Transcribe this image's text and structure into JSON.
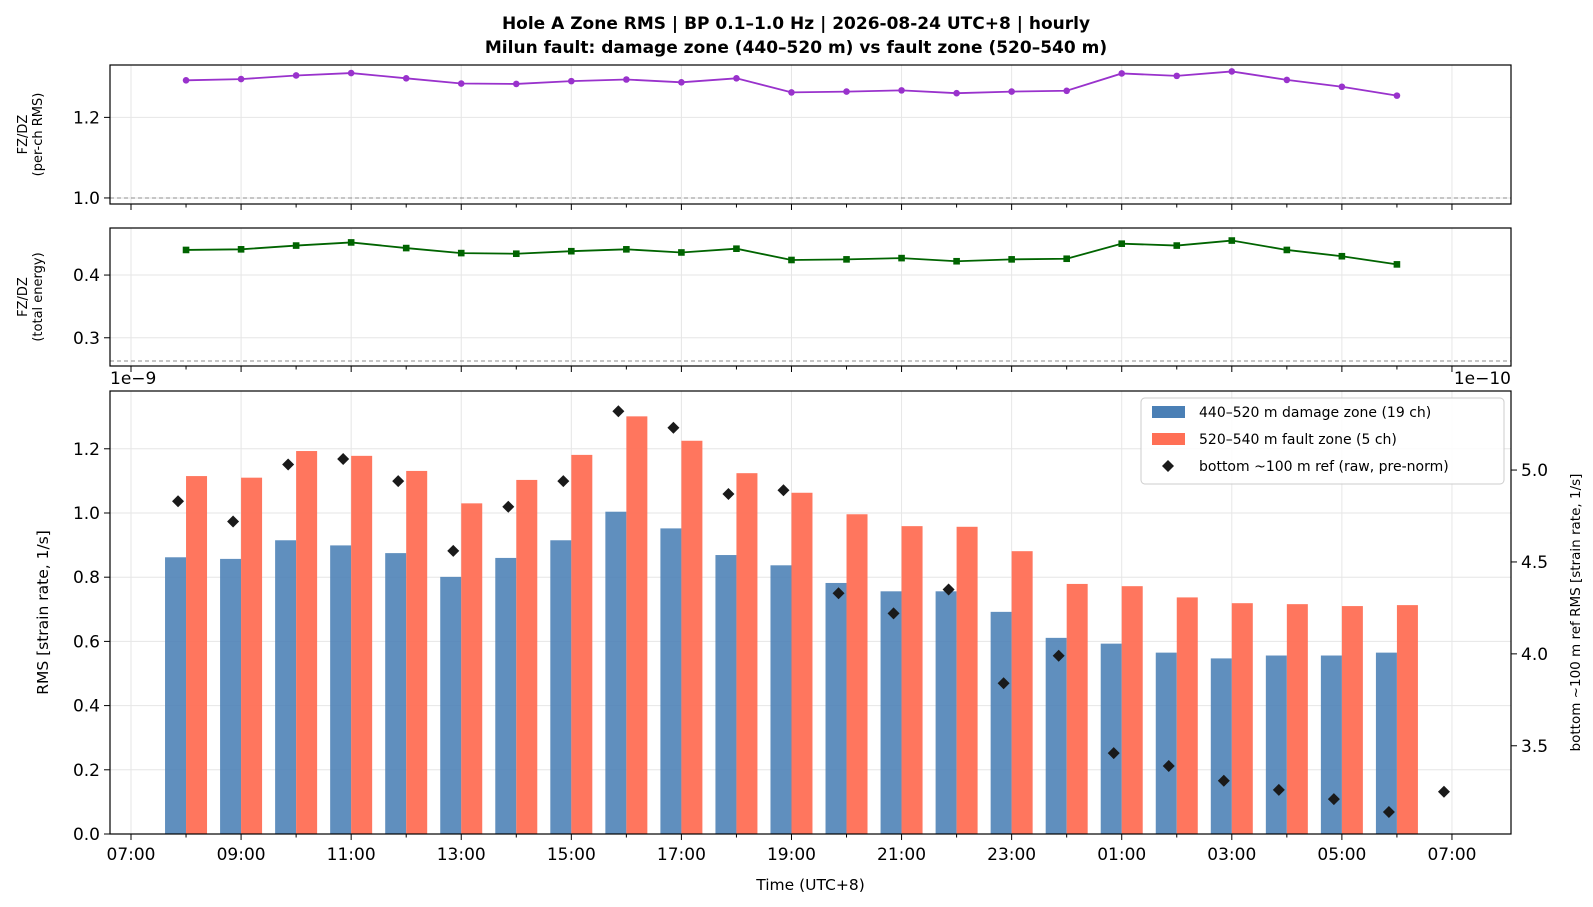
{
  "figure": {
    "title_line1": "Hole A Zone RMS  |  BP 0.1–1.0 Hz  |  2026-08-24 UTC+8  |  hourly",
    "title_line2": "Milun fault: damage zone (440–520 m) vs fault zone (520–540 m)"
  },
  "chart_data": [
    {
      "type": "line",
      "ylabel": [
        "FZ/DZ",
        "(per-ch RMS)"
      ],
      "x_index": [
        1,
        2,
        3,
        4,
        5,
        6,
        7,
        8,
        9,
        10,
        11,
        12,
        13,
        14,
        15,
        16,
        17,
        18,
        19,
        20,
        21,
        22,
        23
      ],
      "values": [
        1.292,
        1.295,
        1.304,
        1.31,
        1.297,
        1.284,
        1.283,
        1.29,
        1.294,
        1.287,
        1.297,
        1.262,
        1.264,
        1.267,
        1.26,
        1.264,
        1.266,
        1.309,
        1.303,
        1.314,
        1.293,
        1.276,
        1.254
      ],
      "ylim": [
        0.985,
        1.33
      ],
      "yticks": [
        1.0,
        1.2
      ],
      "ytick_labels": [
        "1.0",
        "1.2"
      ],
      "reference_line": 1.0,
      "color": "#9932CC",
      "marker": "circle",
      "grid": true
    },
    {
      "type": "line",
      "ylabel": [
        "FZ/DZ",
        "(total energy)"
      ],
      "x_index": [
        1,
        2,
        3,
        4,
        5,
        6,
        7,
        8,
        9,
        10,
        11,
        12,
        13,
        14,
        15,
        16,
        17,
        18,
        19,
        20,
        21,
        22,
        23
      ],
      "values": [
        0.44,
        0.441,
        0.447,
        0.452,
        0.443,
        0.435,
        0.434,
        0.438,
        0.441,
        0.436,
        0.442,
        0.424,
        0.425,
        0.427,
        0.422,
        0.425,
        0.426,
        0.45,
        0.447,
        0.455,
        0.44,
        0.43,
        0.417
      ],
      "ylim": [
        0.255,
        0.475
      ],
      "yticks": [
        0.3,
        0.4
      ],
      "ytick_labels": [
        "0.3",
        "0.4"
      ],
      "reference_line": 0.263,
      "color": "#006400",
      "marker": "square",
      "grid": true
    },
    {
      "type": "bar",
      "xlabel": "Time (UTC+8)",
      "ylabel": "RMS  [strain rate, 1/s]",
      "y2label": "bottom ~100 m ref RMS  [strain rate, 1/s]",
      "offset_label_left": "1e−9",
      "offset_label_right": "1e−10",
      "x_index": [
        1,
        2,
        3,
        4,
        5,
        6,
        7,
        8,
        9,
        10,
        11,
        12,
        13,
        14,
        15,
        16,
        17,
        18,
        19,
        20,
        21,
        22,
        23
      ],
      "xticks": [
        "07:00",
        "09:00",
        "11:00",
        "13:00",
        "15:00",
        "17:00",
        "19:00",
        "21:00",
        "23:00",
        "01:00",
        "03:00",
        "05:00",
        "07:00"
      ],
      "ylim": [
        0,
        1.38
      ],
      "yticks": [
        0.0,
        0.2,
        0.4,
        0.6,
        0.8,
        1.0,
        1.2
      ],
      "ytick_labels": [
        "0.0",
        "0.2",
        "0.4",
        "0.6",
        "0.8",
        "1.0",
        "1.2"
      ],
      "y2lim": [
        3.02,
        5.43
      ],
      "y2ticks": [
        3.5,
        4.0,
        4.5,
        5.0
      ],
      "y2tick_labels": [
        "3.5",
        "4.0",
        "4.5",
        "5.0"
      ],
      "grid": true,
      "legend_position": "top-right",
      "series": [
        {
          "name": "440–520 m  damage zone (19 ch)",
          "color": "#4A7FB5",
          "values": [
            0.862,
            0.857,
            0.915,
            0.899,
            0.875,
            0.801,
            0.86,
            0.915,
            1.004,
            0.952,
            0.869,
            0.837,
            0.782,
            0.756,
            0.756,
            0.692,
            0.611,
            0.593,
            0.565,
            0.547,
            0.556,
            0.556,
            0.565
          ]
        },
        {
          "name": "520–540 m  fault zone (5 ch)",
          "color": "#FF6F55",
          "values": [
            1.115,
            1.11,
            1.193,
            1.178,
            1.131,
            1.03,
            1.103,
            1.181,
            1.301,
            1.225,
            1.124,
            1.063,
            0.996,
            0.959,
            0.957,
            0.881,
            0.779,
            0.772,
            0.737,
            0.719,
            0.716,
            0.71,
            0.713
          ]
        },
        {
          "name": "bottom ~100 m ref (raw, pre-norm)",
          "color": "#1a1a1a",
          "axis": "right",
          "x_index": [
            1,
            2,
            3,
            4,
            5,
            6,
            7,
            8,
            9,
            10,
            11,
            12,
            13,
            14,
            15,
            16,
            17,
            18,
            19,
            20,
            21,
            22,
            23,
            24
          ],
          "values": [
            4.83,
            4.72,
            5.03,
            5.06,
            4.94,
            4.56,
            4.8,
            4.94,
            5.32,
            5.23,
            4.87,
            4.89,
            4.33,
            4.22,
            4.35,
            3.84,
            3.99,
            3.46,
            3.39,
            3.31,
            3.26,
            3.21,
            3.14,
            3.25
          ]
        }
      ]
    }
  ]
}
